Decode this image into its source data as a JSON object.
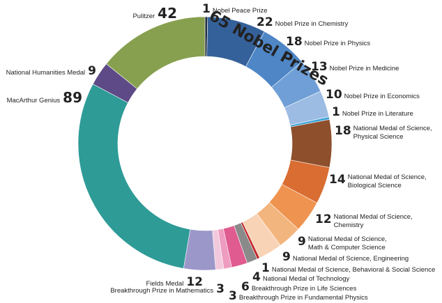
{
  "chart_data": {
    "type": "pie",
    "donut": true,
    "title": "",
    "annotation": "65 Nobel Prizes",
    "slices": [
      {
        "label": "Nobel Peace Prize",
        "value": 1,
        "color": "#1f2d3f"
      },
      {
        "label": "Nobel Prize in Chemistry",
        "value": 22,
        "color": "#35619a"
      },
      {
        "label": "Nobel Prize in Physics",
        "value": 18,
        "color": "#4e86c6"
      },
      {
        "label": "Nobel Prize in Medicine",
        "value": 13,
        "color": "#6f9fd6"
      },
      {
        "label": "Nobel Prize in Economics",
        "value": 10,
        "color": "#9dbce3"
      },
      {
        "label": "Nobel Prize in Literature",
        "value": 1,
        "color": "#3aa1d6"
      },
      {
        "label": "National Medal of Science, Physical Science",
        "value": 18,
        "color": "#8e4f2c"
      },
      {
        "label": "National Medal of Science, Biological Science",
        "value": 14,
        "color": "#d96d32"
      },
      {
        "label": "National Medal of Science, Chemistry",
        "value": 12,
        "color": "#ee9450"
      },
      {
        "label": "National Medal of Science, Math & Computer Science",
        "value": 9,
        "color": "#f3b57e"
      },
      {
        "label": "National Medal of Science, Engineering",
        "value": 9,
        "color": "#f8d3b6"
      },
      {
        "label": "National Medal of Science, Behavioral & Social Science",
        "value": 1,
        "color": "#c0262a"
      },
      {
        "label": "National Medal of Technology",
        "value": 4,
        "color": "#8a8a8a"
      },
      {
        "label": "Breakthrough Prize in Life Sciences",
        "value": 6,
        "color": "#e05b8f"
      },
      {
        "label": "Breakthrough Prize in Fundamental Physics",
        "value": 3,
        "color": "#ee9cc0"
      },
      {
        "label": "Breakthrough Prize in Mathematics",
        "value": 3,
        "color": "#f2c9dc"
      },
      {
        "label": "Fields Medal",
        "value": 12,
        "color": "#9b97c9"
      },
      {
        "label": "MacArthur Genius",
        "value": 89,
        "color": "#2e9b97"
      },
      {
        "label": "National Humanities Medal",
        "value": 9,
        "color": "#5d4a86"
      },
      {
        "label": "Pulitzer",
        "value": 42,
        "color": "#87a04f"
      }
    ]
  }
}
